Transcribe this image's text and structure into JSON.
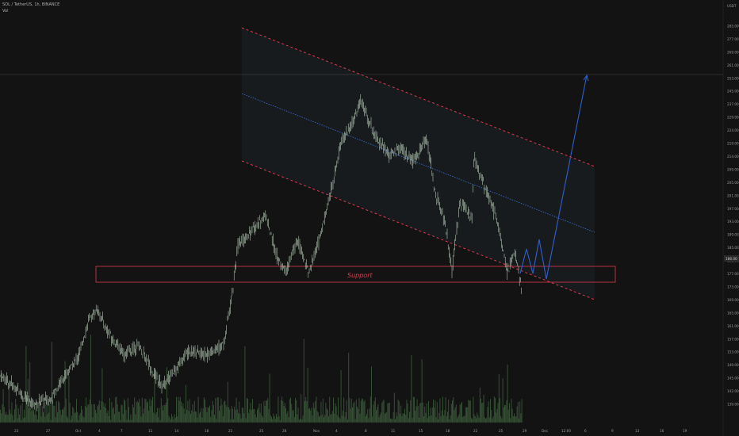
{
  "header": {
    "symbol_line": "SOL / TetherUS, 1h, BINANCE",
    "indicator_label": "Vol"
  },
  "chart_data": {
    "type": "candlestick",
    "price_axis": {
      "unit_label": "USDT",
      "ticks": [
        "285.00",
        "277.00",
        "269.00",
        "261.00",
        "253.00",
        "245.00",
        "237.00",
        "229.00",
        "224.00",
        "219.00",
        "214.00",
        "209.00",
        "205.00",
        "201.00",
        "197.00",
        "193.00",
        "189.00",
        "185.00",
        "181.00",
        "177.00",
        "173.00",
        "169.00",
        "165.00",
        "161.00",
        "157.00",
        "153.00",
        "149.00",
        "145.00",
        "142.00",
        "139.00"
      ],
      "current_price": "186.00"
    },
    "time_axis": {
      "ticks": [
        "23",
        "27",
        "Oct",
        "4",
        "7",
        "11",
        "14",
        "18",
        "21",
        "25",
        "28",
        "Nov",
        "4",
        "8",
        "11",
        "15",
        "18",
        "22",
        "25",
        "29",
        "Dec",
        "12:00",
        "6",
        "9",
        "13",
        "16",
        "19"
      ]
    },
    "annotations": {
      "support_label": "Support",
      "horizontal_line_price": 261.0
    },
    "colors": {
      "background": "#131313",
      "candles": "#cfe8cf",
      "volume": "#3c5a3c",
      "channel_lines": "#e0394f",
      "channel_mid": "#3a6fd8",
      "projection": "#2f5fd0",
      "support_box": "#e0394f"
    }
  }
}
